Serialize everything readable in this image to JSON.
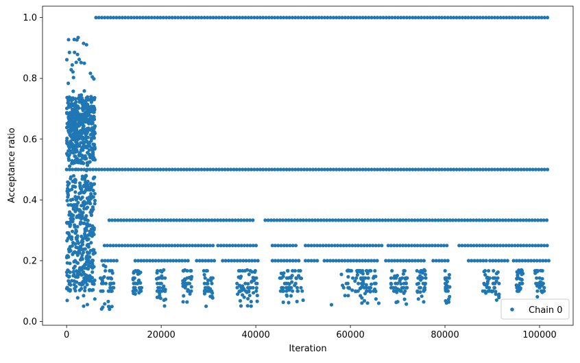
{
  "chart_data": {
    "type": "scatter",
    "title": "",
    "xlabel": "Iteration",
    "ylabel": "Acceptance ratio",
    "xlim": [
      -5100,
      107100
    ],
    "ylim": [
      -0.0125,
      1.0375
    ],
    "xticks": [
      0,
      20000,
      40000,
      60000,
      80000,
      100000
    ],
    "xtick_labels": [
      "0",
      "20000",
      "40000",
      "60000",
      "80000",
      "100000"
    ],
    "yticks": [
      0.0,
      0.2,
      0.4,
      0.6,
      0.8,
      1.0
    ],
    "ytick_labels": [
      "0.0",
      "0.2",
      "0.4",
      "0.6",
      "0.8",
      "1.0"
    ],
    "grid": false,
    "legend_position": "lower right",
    "marker_color": "#1f77b4",
    "series": [
      {
        "name": "Chain 0",
        "description_of_structure": "burn-in scatter for iterations 0-6000 spread 0.04-0.95; afterwards values sit on discrete levels 1.0, 0.5, 1/3, 0.25, 0.2, 1/6, 1/7, 0.125, 1/9, 0.1, ...",
        "continuous_levels": [
          1.0,
          0.5
        ],
        "level_segments": [
          {
            "level": 0.3333,
            "ranges": [
              [
                9000,
                39700
              ],
              [
                42000,
                102000
              ]
            ]
          },
          {
            "level": 0.25,
            "ranges": [
              [
                8000,
                31000
              ],
              [
                32000,
                40500
              ],
              [
                43500,
                49000
              ],
              [
                50500,
                67000
              ],
              [
                68000,
                81000
              ],
              [
                83000,
                102000
              ]
            ]
          },
          {
            "level": 0.2,
            "ranges": [
              [
                7500,
                11000
              ],
              [
                14500,
                26000
              ],
              [
                27500,
                31500
              ],
              [
                33000,
                41000
              ],
              [
                43500,
                49500
              ],
              [
                50500,
                53000
              ],
              [
                54500,
                66000
              ],
              [
                67500,
                76000
              ],
              [
                77500,
                81000
              ],
              [
                85000,
                89000
              ],
              [
                89500,
                93500
              ],
              [
                94500,
                102000
              ]
            ]
          }
        ],
        "sparse_clusters": [
          {
            "x_range": [
              7000,
              10000
            ],
            "y_range": [
              0.04,
              0.2
            ]
          },
          {
            "x_range": [
              14000,
              16000
            ],
            "y_range": [
              0.09,
              0.17
            ]
          },
          {
            "x_range": [
              19000,
              21000
            ],
            "y_range": [
              0.05,
              0.17
            ]
          },
          {
            "x_range": [
              24500,
              26500
            ],
            "y_range": [
              0.06,
              0.17
            ]
          },
          {
            "x_range": [
              29000,
              31000
            ],
            "y_range": [
              0.05,
              0.17
            ]
          },
          {
            "x_range": [
              36000,
              40500
            ],
            "y_range": [
              0.05,
              0.17
            ]
          },
          {
            "x_range": [
              45000,
              50000
            ],
            "y_range": [
              0.06,
              0.17
            ]
          },
          {
            "x_range": [
              58000,
              65500
            ],
            "y_range": [
              0.06,
              0.17
            ]
          },
          {
            "x_range": [
              68500,
              72000
            ],
            "y_range": [
              0.05,
              0.17
            ]
          },
          {
            "x_range": [
              74000,
              76000
            ],
            "y_range": [
              0.06,
              0.17
            ]
          },
          {
            "x_range": [
              80000,
              81000
            ],
            "y_range": [
              0.06,
              0.17
            ]
          },
          {
            "x_range": [
              88000,
              91500
            ],
            "y_range": [
              0.07,
              0.17
            ]
          },
          {
            "x_range": [
              95000,
              96500
            ],
            "y_range": [
              0.1,
              0.17
            ]
          },
          {
            "x_range": [
              99000,
              101000
            ],
            "y_range": [
              0.07,
              0.17
            ]
          }
        ],
        "outlier_points": [
          [
            56000,
            0.055
          ],
          [
            66000,
            0.06
          ],
          [
            70000,
            0.065
          ],
          [
            50000,
            0.07
          ]
        ]
      }
    ]
  }
}
